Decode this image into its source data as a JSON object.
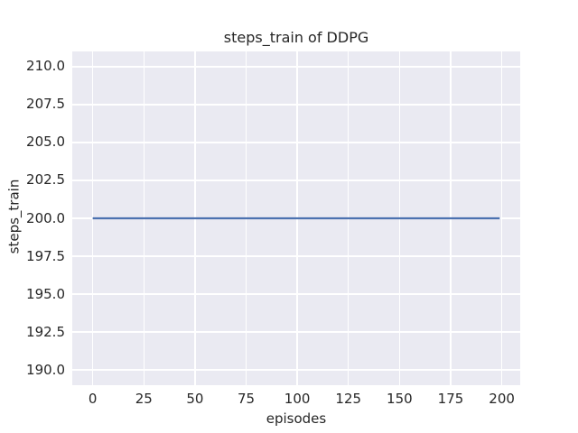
{
  "colors": {
    "figure_background": "#ffffff",
    "plot_background": "#eaeaf2",
    "grid_color": "#ffffff",
    "text_color": "#262626",
    "line_color": "#4c72b0"
  },
  "chart_data": {
    "type": "line",
    "title": "steps_train of DDPG",
    "xlabel": "episodes",
    "ylabel": "steps_train",
    "grid": true,
    "legend": false,
    "xlim": [
      -10,
      209
    ],
    "ylim": [
      189,
      211
    ],
    "x_ticks": [
      {
        "value": 0,
        "label": "0"
      },
      {
        "value": 25,
        "label": "25"
      },
      {
        "value": 50,
        "label": "50"
      },
      {
        "value": 75,
        "label": "75"
      },
      {
        "value": 100,
        "label": "100"
      },
      {
        "value": 125,
        "label": "125"
      },
      {
        "value": 150,
        "label": "150"
      },
      {
        "value": 175,
        "label": "175"
      },
      {
        "value": 200,
        "label": "200"
      }
    ],
    "y_ticks": [
      {
        "value": 190.0,
        "label": "190.0"
      },
      {
        "value": 192.5,
        "label": "192.5"
      },
      {
        "value": 195.0,
        "label": "195.0"
      },
      {
        "value": 197.5,
        "label": "197.5"
      },
      {
        "value": 200.0,
        "label": "200.0"
      },
      {
        "value": 202.5,
        "label": "202.5"
      },
      {
        "value": 205.0,
        "label": "205.0"
      },
      {
        "value": 207.5,
        "label": "207.5"
      },
      {
        "value": 210.0,
        "label": "210.0"
      }
    ],
    "series": [
      {
        "name": "steps_train",
        "color": "#4c72b0",
        "description": "constant value 200 for every episode from 0 to 199",
        "x": [
          0,
          199
        ],
        "y": [
          200,
          200
        ]
      }
    ]
  }
}
